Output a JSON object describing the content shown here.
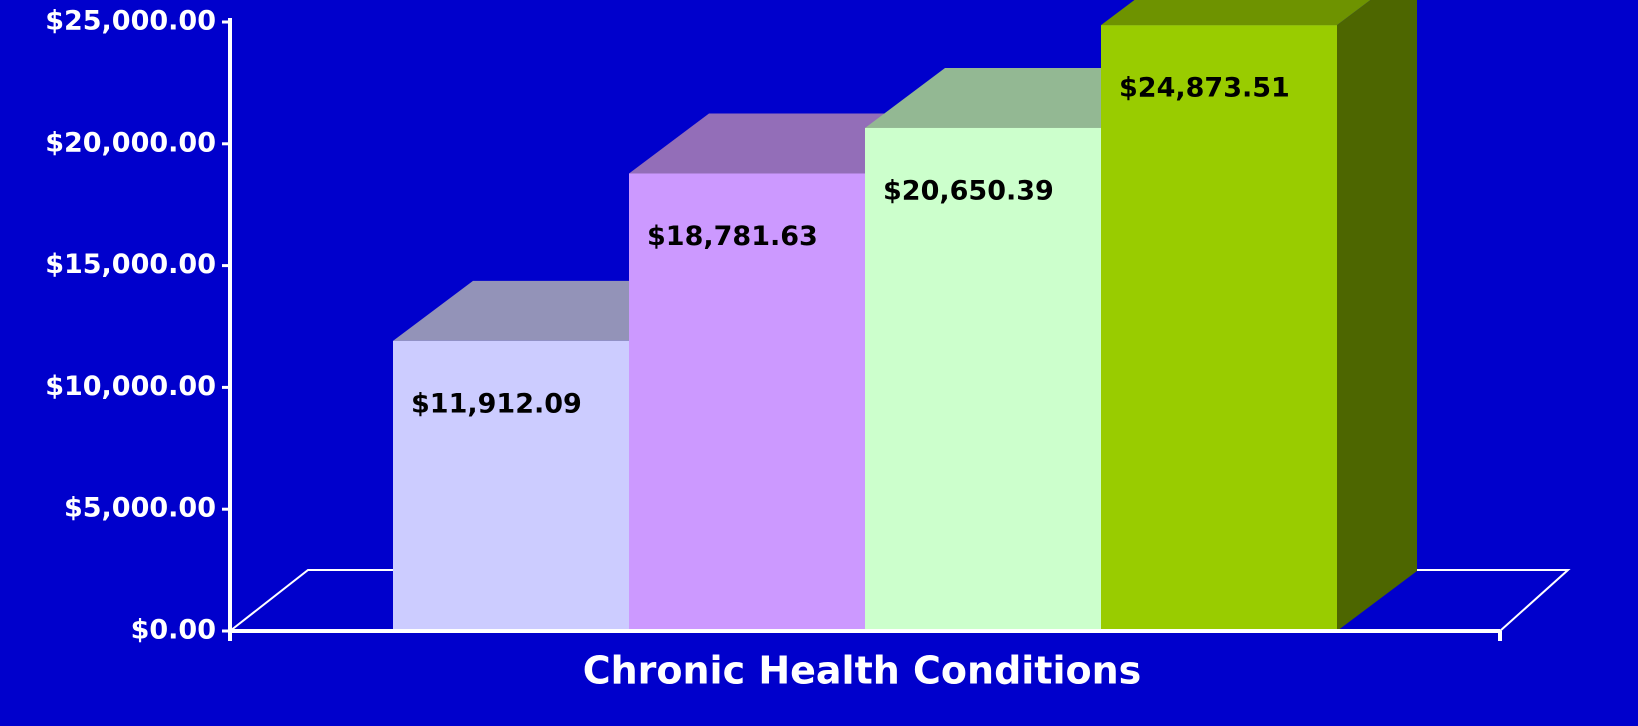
{
  "chart_data": {
    "type": "bar3d",
    "x_label": "Chronic Health Conditions",
    "categories": [
      null,
      null,
      null,
      null
    ],
    "values": [
      11912.09,
      18781.63,
      20650.39,
      24873.51
    ],
    "value_labels": [
      "$11,912.09",
      "$18,781.63",
      "$20,650.39",
      "$24,873.51"
    ],
    "colors": [
      "#ccccff",
      "#cc99ff",
      "#ccffcc",
      "#99cc00"
    ],
    "ylim": [
      0,
      25000
    ],
    "yticks": [
      {
        "value": 0,
        "label": "$0.00"
      },
      {
        "value": 5000,
        "label": "$5,000.00"
      },
      {
        "value": 10000,
        "label": "$10,000.00"
      },
      {
        "value": 15000,
        "label": "$15,000.00"
      },
      {
        "value": 20000,
        "label": "$20,000.00"
      },
      {
        "value": 25000,
        "label": "$25,000.00"
      }
    ]
  }
}
